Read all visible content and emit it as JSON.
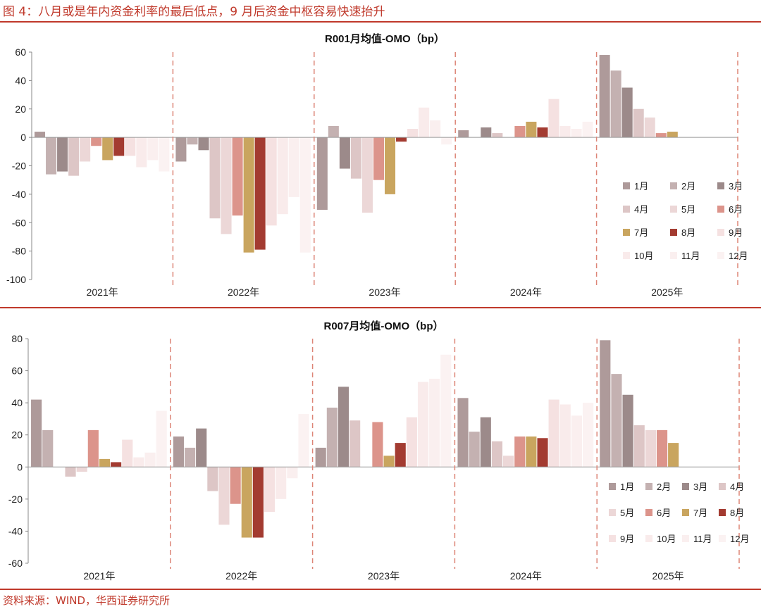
{
  "figure": {
    "title": "图 4：八月或是年内资金利率的最后低点，9 月后资金中枢容易快速抬升",
    "source": "资料来源：WIND，华西证券研究所"
  },
  "palette": {
    "1月": "#ae9a9a",
    "2月": "#c4b1b1",
    "3月": "#9c8a8a",
    "4月": "#ddc6c6",
    "5月": "#ecd7d7",
    "6月": "#dc948b",
    "7月": "#c9a55f",
    "8月": "#a33b31",
    "9月": "#f5e1e1",
    "10月": "#f9ebeb",
    "11月": "#faefef",
    "12月": "#fbf2f2",
    "separator": "#dd8577"
  },
  "chart_data": [
    {
      "type": "bar",
      "title": "R001月均值-OMO（bp）",
      "categories": [
        "2021年",
        "2022年",
        "2023年",
        "2024年",
        "2025年"
      ],
      "ylim": [
        -100,
        60
      ],
      "yticks": [
        -100,
        -80,
        -60,
        -40,
        -20,
        0,
        20,
        40,
        60
      ],
      "legend_position": "bottom-right",
      "legend_columns": 3,
      "series": [
        {
          "name": "1月",
          "values": [
            4,
            -17,
            -51,
            5,
            58
          ]
        },
        {
          "name": "2月",
          "values": [
            -26,
            -5,
            8,
            0,
            47
          ]
        },
        {
          "name": "3月",
          "values": [
            -24,
            -9,
            -22,
            7,
            35
          ]
        },
        {
          "name": "4月",
          "values": [
            -27,
            -57,
            -29,
            3,
            20
          ]
        },
        {
          "name": "5月",
          "values": [
            -17,
            -68,
            -53,
            0,
            14
          ]
        },
        {
          "name": "6月",
          "values": [
            -6,
            -55,
            -30,
            8,
            3
          ]
        },
        {
          "name": "7月",
          "values": [
            -16,
            -81,
            -40,
            11,
            4
          ]
        },
        {
          "name": "8月",
          "values": [
            -13,
            -79,
            -3,
            7,
            null
          ]
        },
        {
          "name": "9月",
          "values": [
            -13,
            -62,
            6,
            27,
            null
          ]
        },
        {
          "name": "10月",
          "values": [
            -21,
            -54,
            21,
            8,
            null
          ]
        },
        {
          "name": "11月",
          "values": [
            -16,
            -42,
            12,
            6,
            null
          ]
        },
        {
          "name": "12月",
          "values": [
            -24,
            -81,
            -5,
            11,
            null
          ]
        }
      ]
    },
    {
      "type": "bar",
      "title": "R007月均值-OMO（bp）",
      "categories": [
        "2021年",
        "2022年",
        "2023年",
        "2024年",
        "2025年"
      ],
      "ylim": [
        -60,
        80
      ],
      "yticks": [
        -60,
        -40,
        -20,
        0,
        20,
        40,
        60,
        80
      ],
      "legend_position": "bottom-right",
      "legend_columns": 4,
      "series": [
        {
          "name": "1月",
          "values": [
            42,
            19,
            12,
            43,
            79
          ]
        },
        {
          "name": "2月",
          "values": [
            23,
            12,
            37,
            22,
            58
          ]
        },
        {
          "name": "3月",
          "values": [
            0,
            24,
            50,
            31,
            45
          ]
        },
        {
          "name": "4月",
          "values": [
            -6,
            -15,
            29,
            16,
            26
          ]
        },
        {
          "name": "5月",
          "values": [
            -3,
            -36,
            0,
            7,
            23
          ]
        },
        {
          "name": "6月",
          "values": [
            23,
            -23,
            28,
            19,
            23
          ]
        },
        {
          "name": "7月",
          "values": [
            5,
            -44,
            7,
            19,
            15
          ]
        },
        {
          "name": "8月",
          "values": [
            3,
            -44,
            15,
            18,
            null
          ]
        },
        {
          "name": "9月",
          "values": [
            17,
            -28,
            31,
            42,
            null
          ]
        },
        {
          "name": "10月",
          "values": [
            6,
            -20,
            53,
            39,
            null
          ]
        },
        {
          "name": "11月",
          "values": [
            9,
            -7,
            55,
            32,
            null
          ]
        },
        {
          "name": "12月",
          "values": [
            35,
            33,
            70,
            40,
            null
          ]
        }
      ]
    }
  ]
}
